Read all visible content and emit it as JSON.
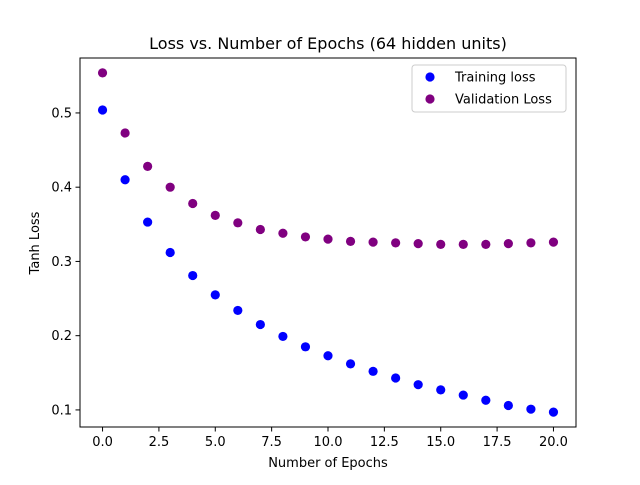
{
  "chart_data": {
    "type": "scatter",
    "title": "Loss vs. Number of Epochs (64 hidden units)",
    "xlabel": "Number of Epochs",
    "ylabel": "Tanh Loss",
    "xlim": [
      -1.0,
      21.0
    ],
    "ylim": [
      0.077,
      0.574
    ],
    "xticks": [
      0.0,
      2.5,
      5.0,
      7.5,
      10.0,
      12.5,
      15.0,
      17.5,
      20.0
    ],
    "xtick_labels": [
      "0.0",
      "2.5",
      "5.0",
      "7.5",
      "10.0",
      "12.5",
      "15.0",
      "17.5",
      "20.0"
    ],
    "yticks": [
      0.1,
      0.2,
      0.3,
      0.4,
      0.5
    ],
    "ytick_labels": [
      "0.1",
      "0.2",
      "0.3",
      "0.4",
      "0.5"
    ],
    "grid": false,
    "legend_position": "top-right",
    "x": [
      0,
      1,
      2,
      3,
      4,
      5,
      6,
      7,
      8,
      9,
      10,
      11,
      12,
      13,
      14,
      15,
      16,
      17,
      18,
      19,
      20
    ],
    "series": [
      {
        "name": "Training loss",
        "color": "#0000ff",
        "values": [
          0.504,
          0.41,
          0.353,
          0.312,
          0.281,
          0.255,
          0.234,
          0.215,
          0.199,
          0.185,
          0.173,
          0.162,
          0.152,
          0.143,
          0.134,
          0.127,
          0.12,
          0.113,
          0.106,
          0.101,
          0.097
        ]
      },
      {
        "name": "Validation Loss",
        "color": "#800080",
        "values": [
          0.554,
          0.473,
          0.428,
          0.4,
          0.378,
          0.362,
          0.352,
          0.343,
          0.338,
          0.333,
          0.33,
          0.327,
          0.326,
          0.325,
          0.324,
          0.323,
          0.323,
          0.323,
          0.324,
          0.325,
          0.326
        ]
      }
    ]
  }
}
